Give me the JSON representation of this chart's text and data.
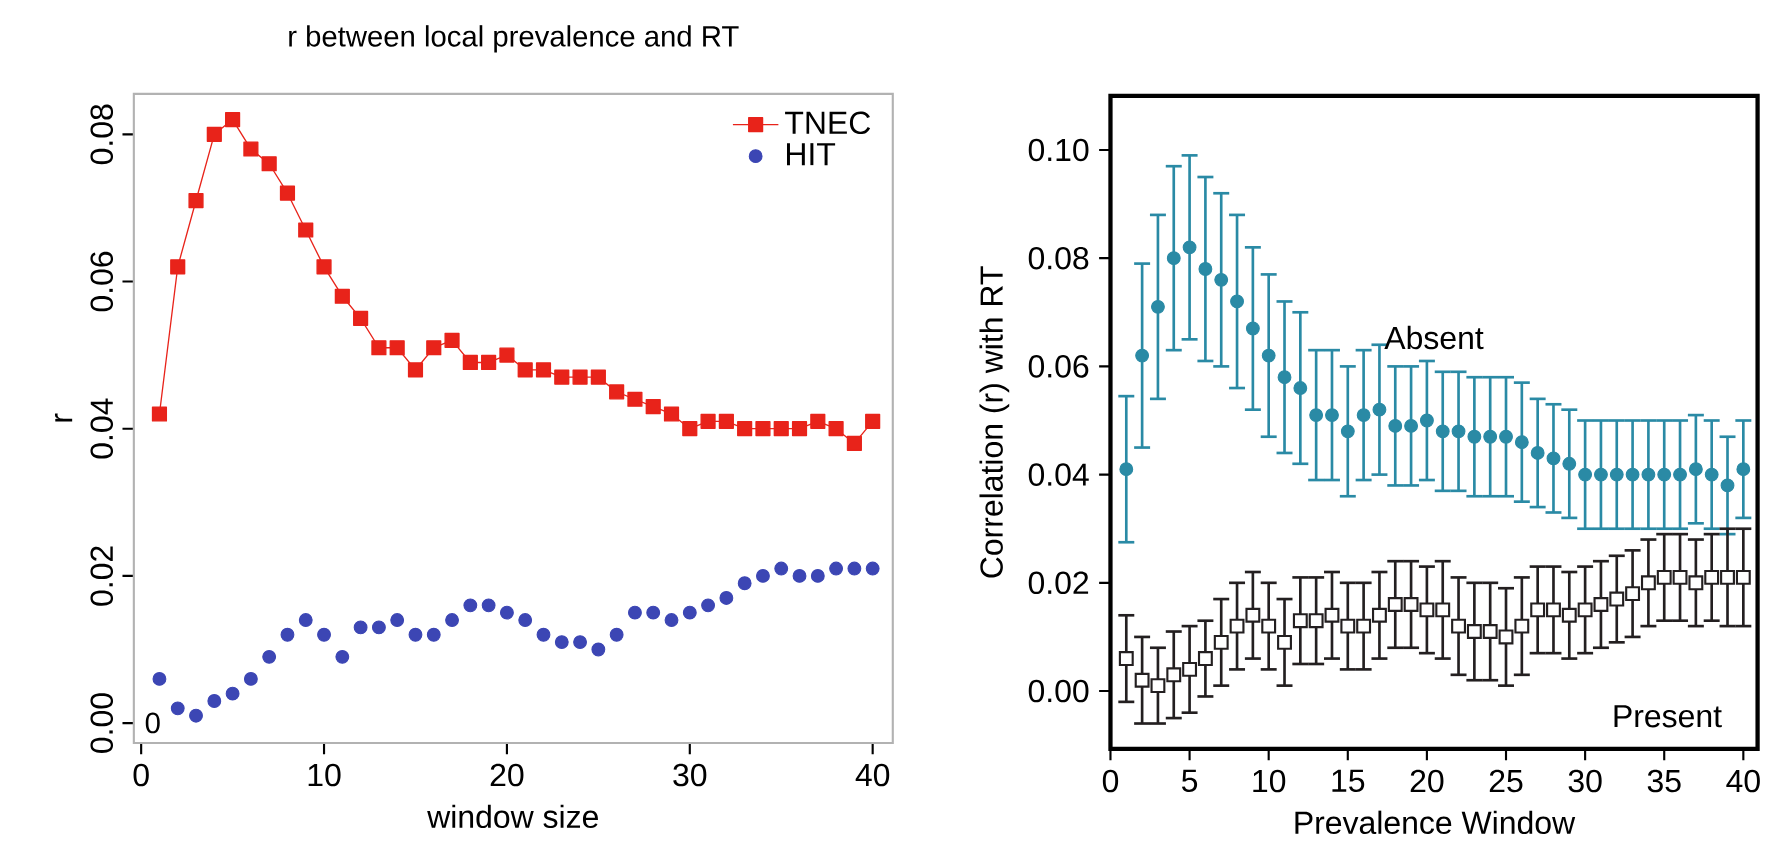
{
  "chart_data": [
    {
      "type": "scatter",
      "title": "r between local prevalence and RT",
      "xlabel": "window size",
      "ylabel": "r",
      "x": [
        1,
        2,
        3,
        4,
        5,
        6,
        7,
        8,
        9,
        10,
        11,
        12,
        13,
        14,
        15,
        16,
        17,
        18,
        19,
        20,
        21,
        22,
        23,
        24,
        25,
        26,
        27,
        28,
        29,
        30,
        31,
        32,
        33,
        34,
        35,
        36,
        37,
        38,
        39,
        40
      ],
      "series": [
        {
          "name": "TNEC",
          "type": "line",
          "color": "#e8231a",
          "marker": "square",
          "values": [
            0.042,
            0.062,
            0.071,
            0.08,
            0.082,
            0.078,
            0.076,
            0.072,
            0.067,
            0.062,
            0.058,
            0.055,
            0.051,
            0.051,
            0.048,
            0.051,
            0.052,
            0.049,
            0.049,
            0.05,
            0.048,
            0.048,
            0.047,
            0.047,
            0.047,
            0.045,
            0.044,
            0.043,
            0.042,
            0.04,
            0.041,
            0.041,
            0.04,
            0.04,
            0.04,
            0.04,
            0.041,
            0.04,
            0.038,
            0.041
          ]
        },
        {
          "name": "HIT",
          "color": "#3c46b4",
          "marker": "circle",
          "values": [
            0.006,
            0.002,
            0.001,
            0.003,
            0.004,
            0.006,
            0.009,
            0.012,
            0.014,
            0.012,
            0.009,
            0.013,
            0.013,
            0.014,
            0.012,
            0.012,
            0.014,
            0.016,
            0.016,
            0.015,
            0.014,
            0.012,
            0.011,
            0.011,
            0.01,
            0.012,
            0.015,
            0.015,
            0.014,
            0.015,
            0.016,
            0.017,
            0.019,
            0.02,
            0.021,
            0.02,
            0.02,
            0.021,
            0.021,
            0.021
          ]
        }
      ],
      "xlim": [
        -0.4,
        41.1
      ],
      "ylim": [
        -0.0027,
        0.0855
      ],
      "xticks": [
        0,
        10,
        20,
        30,
        40
      ],
      "yticks": [
        {
          "value": 0,
          "label": "0.00"
        },
        {
          "value": 0.02,
          "label": "0.02"
        },
        {
          "value": 0.04,
          "label": "0.04"
        },
        {
          "value": 0.06,
          "label": "0.06"
        },
        {
          "value": 0.08,
          "label": "0.08"
        }
      ],
      "legend": "top right",
      "annotations": [
        "0"
      ]
    },
    {
      "type": "scatter",
      "xlabel": "Prevalence Window",
      "ylabel": "Correlation (r) with RT",
      "x": [
        1,
        2,
        3,
        4,
        5,
        6,
        7,
        8,
        9,
        10,
        11,
        12,
        13,
        14,
        15,
        16,
        17,
        18,
        19,
        20,
        21,
        22,
        23,
        24,
        25,
        26,
        27,
        28,
        29,
        30,
        31,
        32,
        33,
        34,
        35,
        36,
        37,
        38,
        39,
        40
      ],
      "series": [
        {
          "name": "Absent",
          "color": "#2a8aa5",
          "marker": "circle",
          "values": [
            0.041,
            0.062,
            0.071,
            0.08,
            0.082,
            0.078,
            0.076,
            0.072,
            0.067,
            0.062,
            0.058,
            0.056,
            0.051,
            0.051,
            0.048,
            0.051,
            0.052,
            0.049,
            0.049,
            0.05,
            0.048,
            0.048,
            0.047,
            0.047,
            0.047,
            0.046,
            0.044,
            0.043,
            0.042,
            0.04,
            0.04,
            0.04,
            0.04,
            0.04,
            0.04,
            0.04,
            0.041,
            0.04,
            0.038,
            0.041
          ],
          "errors": [
            0.0135,
            0.017,
            0.017,
            0.017,
            0.017,
            0.017,
            0.016,
            0.016,
            0.015,
            0.015,
            0.014,
            0.014,
            0.012,
            0.012,
            0.012,
            0.012,
            0.012,
            0.011,
            0.011,
            0.011,
            0.011,
            0.011,
            0.011,
            0.011,
            0.011,
            0.011,
            0.01,
            0.01,
            0.01,
            0.01,
            0.01,
            0.01,
            0.01,
            0.01,
            0.01,
            0.01,
            0.01,
            0.01,
            0.009,
            0.009
          ]
        },
        {
          "name": "Present",
          "color": "#231f20",
          "marker": "square",
          "values": [
            0.006,
            0.002,
            0.001,
            0.003,
            0.004,
            0.006,
            0.009,
            0.012,
            0.014,
            0.012,
            0.009,
            0.013,
            0.013,
            0.014,
            0.012,
            0.012,
            0.014,
            0.016,
            0.016,
            0.015,
            0.015,
            0.012,
            0.011,
            0.011,
            0.01,
            0.012,
            0.015,
            0.015,
            0.014,
            0.015,
            0.016,
            0.017,
            0.018,
            0.02,
            0.021,
            0.021,
            0.02,
            0.021,
            0.021,
            0.021
          ],
          "errors": [
            0.008,
            0.008,
            0.007,
            0.008,
            0.008,
            0.007,
            0.008,
            0.008,
            0.008,
            0.008,
            0.008,
            0.008,
            0.008,
            0.008,
            0.008,
            0.008,
            0.008,
            0.008,
            0.008,
            0.008,
            0.009,
            0.009,
            0.009,
            0.009,
            0.009,
            0.009,
            0.008,
            0.008,
            0.008,
            0.008,
            0.008,
            0.008,
            0.008,
            0.008,
            0.008,
            0.008,
            0.008,
            0.008,
            0.009,
            0.009
          ]
        }
      ],
      "xlim": [
        0,
        40.9
      ],
      "ylim": [
        -0.0107,
        0.11
      ],
      "xticks": [
        0,
        5,
        10,
        15,
        20,
        25,
        30,
        35,
        40
      ],
      "yticks": [
        {
          "value": 0,
          "label": "0.00"
        },
        {
          "value": 0.02,
          "label": "0.02"
        },
        {
          "value": 0.04,
          "label": "0.04"
        },
        {
          "value": 0.06,
          "label": "0.06"
        },
        {
          "value": 0.08,
          "label": "0.08"
        },
        {
          "value": 0.1,
          "label": "0.10"
        }
      ]
    }
  ]
}
